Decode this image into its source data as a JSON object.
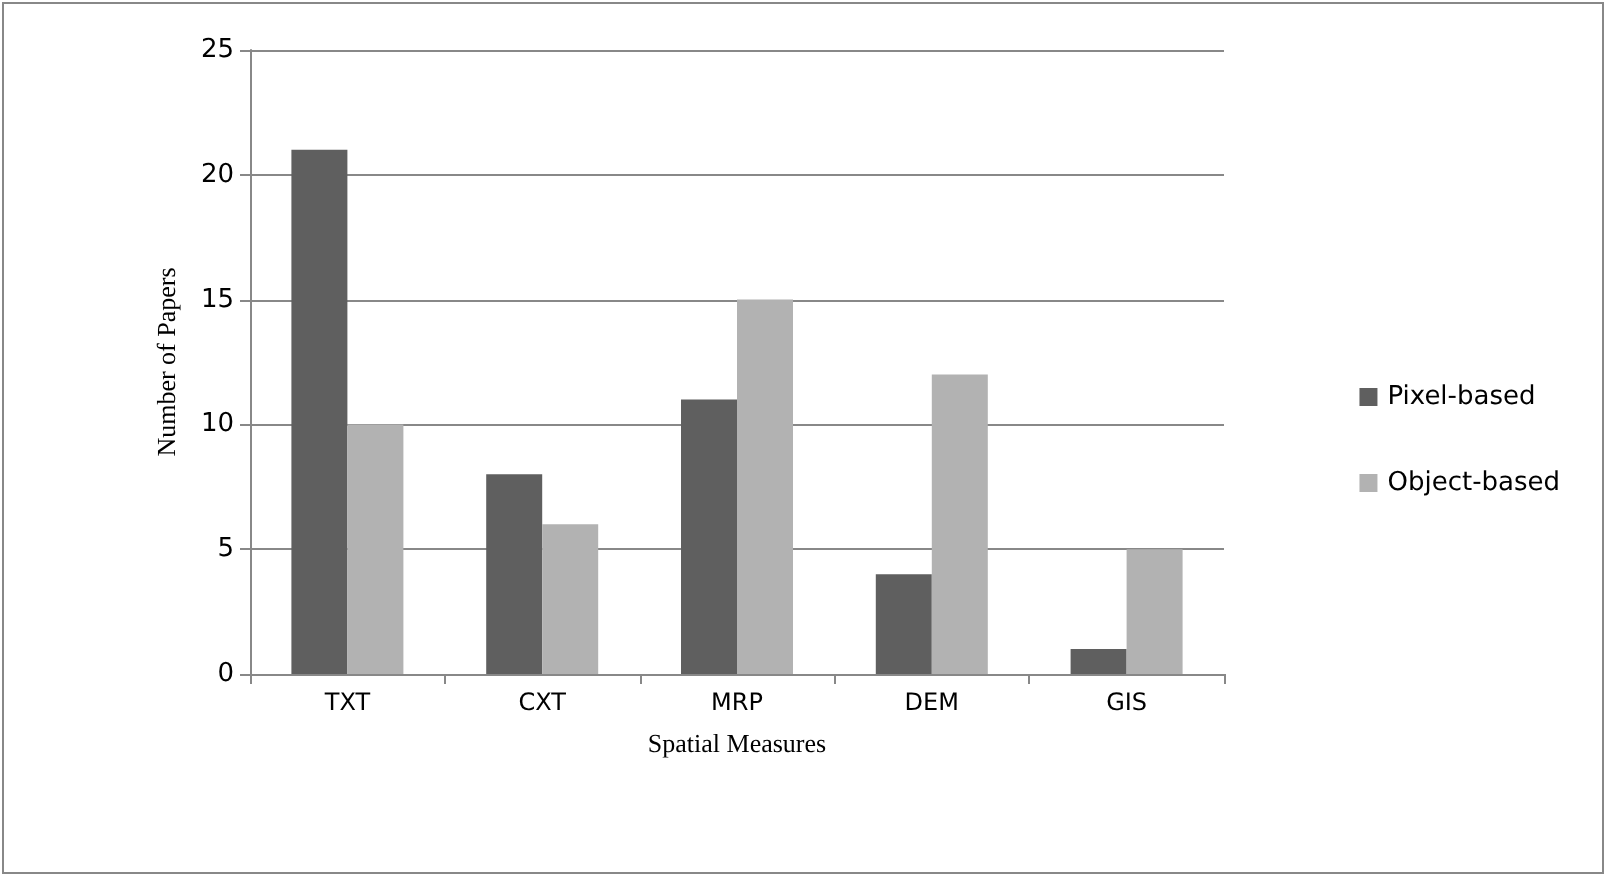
{
  "chart_data": {
    "type": "bar",
    "xlabel": "Spatial Measures",
    "ylabel": "Number of Papers",
    "categories": [
      "TXT",
      "CXT",
      "MRP",
      "DEM",
      "GIS"
    ],
    "series": [
      {
        "name": "Pixel-based",
        "color": "#5f5f5f",
        "values": [
          21,
          8,
          11,
          4,
          1
        ]
      },
      {
        "name": "Object-based",
        "color": "#b2b2b2",
        "values": [
          10,
          6,
          15,
          12,
          5
        ]
      }
    ],
    "ylim": [
      0,
      25
    ],
    "yticks": [
      0,
      5,
      10,
      15,
      20,
      25
    ],
    "grid": "y",
    "legend": "right"
  }
}
